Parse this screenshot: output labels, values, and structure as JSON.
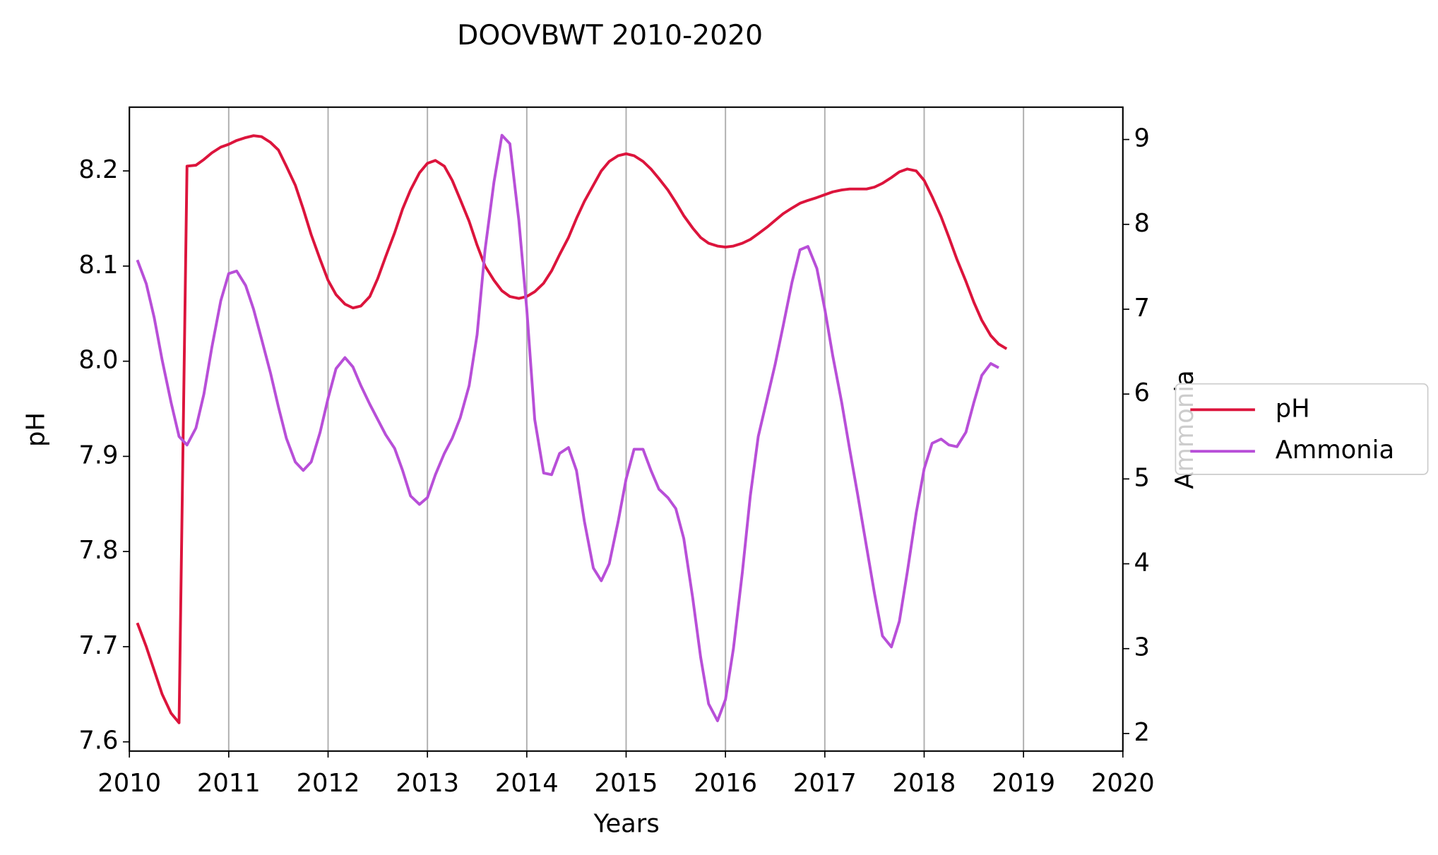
{
  "chart_data": {
    "type": "line",
    "title": "DOOVBWT 2010-2020",
    "xlabel": "Years",
    "ylabel": "pH",
    "y2label": "Ammonia",
    "x": [
      2010.08,
      2010.17,
      2010.25,
      2010.33,
      2010.42,
      2010.5,
      2010.58,
      2010.67,
      2010.75,
      2010.83,
      2010.92,
      2011.0,
      2011.08,
      2011.17,
      2011.25,
      2011.33,
      2011.42,
      2011.5,
      2011.58,
      2011.67,
      2011.75,
      2011.83,
      2011.92,
      2012.0,
      2012.08,
      2012.17,
      2012.25,
      2012.33,
      2012.42,
      2012.5,
      2012.58,
      2012.67,
      2012.75,
      2012.83,
      2012.92,
      2013.0,
      2013.08,
      2013.17,
      2013.25,
      2013.33,
      2013.42,
      2013.5,
      2013.58,
      2013.67,
      2013.75,
      2013.83,
      2013.92,
      2014.0,
      2014.08,
      2014.17,
      2014.25,
      2014.33,
      2014.42,
      2014.5,
      2014.58,
      2014.67,
      2014.75,
      2014.83,
      2014.92,
      2015.0,
      2015.08,
      2015.17,
      2015.25,
      2015.33,
      2015.42,
      2015.5,
      2015.58,
      2015.67,
      2015.75,
      2015.83,
      2015.92,
      2016.0,
      2016.08,
      2016.17,
      2016.25,
      2016.33,
      2016.42,
      2016.5,
      2016.58,
      2016.67,
      2016.75,
      2016.83,
      2016.92,
      2017.0,
      2017.08,
      2017.17,
      2017.25,
      2017.33,
      2017.42,
      2017.5,
      2017.58,
      2017.67,
      2017.75,
      2017.83,
      2017.92,
      2018.0,
      2018.08,
      2018.17,
      2018.25,
      2018.33,
      2018.42,
      2018.5,
      2018.58,
      2018.67,
      2018.75,
      2018.83
    ],
    "series": [
      {
        "name": "pH",
        "color": "#dc143c",
        "values": [
          7.725,
          7.7,
          7.675,
          7.65,
          7.63,
          7.62,
          8.205,
          8.206,
          8.212,
          8.219,
          8.225,
          8.228,
          8.232,
          8.235,
          8.237,
          8.236,
          8.23,
          8.222,
          8.205,
          8.185,
          8.16,
          8.133,
          8.107,
          8.085,
          8.07,
          8.06,
          8.056,
          8.058,
          8.068,
          8.087,
          8.11,
          8.135,
          8.16,
          8.18,
          8.198,
          8.208,
          8.211,
          8.205,
          8.19,
          8.17,
          8.147,
          8.122,
          8.1,
          8.085,
          8.074,
          8.068,
          8.066,
          8.068,
          8.073,
          8.082,
          8.095,
          8.112,
          8.13,
          8.15,
          8.168,
          8.185,
          8.2,
          8.21,
          8.216,
          8.218,
          8.216,
          8.21,
          8.202,
          8.192,
          8.18,
          8.167,
          8.153,
          8.14,
          8.13,
          8.124,
          8.121,
          8.12,
          8.121,
          8.124,
          8.128,
          8.134,
          8.141,
          8.148,
          8.155,
          8.161,
          8.166,
          8.169,
          8.172,
          8.175,
          8.178,
          8.18,
          8.181,
          8.181,
          8.181,
          8.183,
          8.187,
          8.193,
          8.199,
          8.202,
          8.2,
          8.19,
          8.173,
          8.152,
          8.13,
          8.107,
          8.084,
          8.062,
          8.043,
          8.027,
          8.018,
          8.013
        ]
      },
      {
        "name": "Ammonia",
        "color": "#b84fd8",
        "axis": "y2",
        "values": [
          7.58,
          7.3,
          6.9,
          6.4,
          5.9,
          5.5,
          5.4,
          5.6,
          6.0,
          6.55,
          7.1,
          7.42,
          7.45,
          7.28,
          7.0,
          6.65,
          6.25,
          5.85,
          5.48,
          5.2,
          5.1,
          5.2,
          5.55,
          5.95,
          6.3,
          6.43,
          6.32,
          6.1,
          5.88,
          5.7,
          5.52,
          5.36,
          5.1,
          4.8,
          4.7,
          4.78,
          5.05,
          5.3,
          5.48,
          5.72,
          6.1,
          6.7,
          7.7,
          8.5,
          9.05,
          8.95,
          8.05,
          7.0,
          5.7,
          5.07,
          5.05,
          5.3,
          5.37,
          5.1,
          4.5,
          3.95,
          3.8,
          4.0,
          4.5,
          5.0,
          5.35,
          5.35,
          5.1,
          4.88,
          4.78,
          4.65,
          4.3,
          3.6,
          2.9,
          2.35,
          2.15,
          2.4,
          3.0,
          3.9,
          4.8,
          5.5,
          5.95,
          6.35,
          6.8,
          7.32,
          7.7,
          7.74,
          7.48,
          7.0,
          6.45,
          5.9,
          5.35,
          4.82,
          4.2,
          3.65,
          3.15,
          3.02,
          3.32,
          3.9,
          4.6,
          5.12,
          5.42,
          5.47,
          5.4,
          5.38,
          5.55,
          5.9,
          6.22,
          6.36,
          6.31,
          null
        ]
      }
    ],
    "xlim": [
      2010,
      2020
    ],
    "xticks": [
      2010,
      2011,
      2012,
      2013,
      2014,
      2015,
      2016,
      2017,
      2018,
      2019,
      2020
    ],
    "ylim": [
      7.5903,
      8.267
    ],
    "yticks": [
      7.6,
      7.7,
      7.8,
      7.9,
      {
        "value": 8.0,
        "label": "8.0"
      },
      8.1,
      8.2
    ],
    "y2lim": [
      1.793,
      9.381
    ],
    "y2ticks": [
      2,
      3,
      4,
      5,
      6,
      7,
      8,
      9
    ],
    "grid": "x",
    "legend": "outside right"
  }
}
